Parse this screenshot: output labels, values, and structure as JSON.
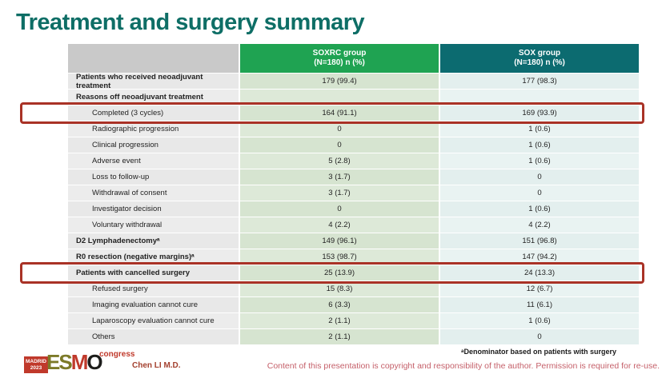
{
  "slide": {
    "title": "Treatment and surgery summary"
  },
  "table": {
    "header": {
      "col1": "",
      "col2_title": "SOXRC group",
      "col2_subtitle": "(N=180)  n (%)",
      "col3_title": "SOX group",
      "col3_subtitle": "(N=180)  n (%)"
    },
    "rows": [
      {
        "label": "Patients who received neoadjuvant treatment",
        "soxrc": "179 (99.4)",
        "sox": "177 (98.3)",
        "bold": true,
        "indent": false,
        "highlight": false
      },
      {
        "label": "Reasons off neoadjuvant treatment",
        "soxrc": "",
        "sox": "",
        "bold": true,
        "indent": false,
        "highlight": false
      },
      {
        "label": "Completed (3 cycles)",
        "soxrc": "164 (91.1)",
        "sox": "169 (93.9)",
        "bold": false,
        "indent": true,
        "highlight": true
      },
      {
        "label": "Radiographic progression",
        "soxrc": "0",
        "sox": "1 (0.6)",
        "bold": false,
        "indent": true,
        "highlight": false
      },
      {
        "label": "Clinical progression",
        "soxrc": "0",
        "sox": "1 (0.6)",
        "bold": false,
        "indent": true,
        "highlight": false
      },
      {
        "label": "Adverse event",
        "soxrc": "5 (2.8)",
        "sox": "1 (0.6)",
        "bold": false,
        "indent": true,
        "highlight": false
      },
      {
        "label": "Loss to follow-up",
        "soxrc": "3 (1.7)",
        "sox": "0",
        "bold": false,
        "indent": true,
        "highlight": false
      },
      {
        "label": "Withdrawal of consent",
        "soxrc": "3 (1.7)",
        "sox": "0",
        "bold": false,
        "indent": true,
        "highlight": false
      },
      {
        "label": "Investigator decision",
        "soxrc": "0",
        "sox": "1 (0.6)",
        "bold": false,
        "indent": true,
        "highlight": false
      },
      {
        "label": "Voluntary withdrawal",
        "soxrc": "4 (2.2)",
        "sox": "4 (2.2)",
        "bold": false,
        "indent": true,
        "highlight": false
      },
      {
        "label": "D2 Lymphadenectomyᵃ",
        "soxrc": "149 (96.1)",
        "sox": "151 (96.8)",
        "bold": true,
        "indent": false,
        "highlight": false
      },
      {
        "label": "R0 resection (negative margins)ᵃ",
        "soxrc": "153 (98.7)",
        "sox": "147 (94.2)",
        "bold": true,
        "indent": false,
        "highlight": false
      },
      {
        "label": "Patients with cancelled surgery",
        "soxrc": "25 (13.9)",
        "sox": "24 (13.3)",
        "bold": true,
        "indent": false,
        "highlight": true
      },
      {
        "label": "Refused surgery",
        "soxrc": "15 (8.3)",
        "sox": "12 (6.7)",
        "bold": false,
        "indent": true,
        "highlight": false
      },
      {
        "label": "Imaging evaluation cannot cure",
        "soxrc": "6 (3.3)",
        "sox": "11 (6.1)",
        "bold": false,
        "indent": true,
        "highlight": false
      },
      {
        "label": "Laparoscopy evaluation cannot cure",
        "soxrc": "2 (1.1)",
        "sox": "1 (0.6)",
        "bold": false,
        "indent": true,
        "highlight": false
      },
      {
        "label": "Others",
        "soxrc": "2 (1.1)",
        "sox": "0",
        "bold": false,
        "indent": true,
        "highlight": false
      }
    ]
  },
  "footer": {
    "footnote": "ᵃDenominator based on patients with surgery",
    "presenter": "Chen LI M.D.",
    "copyright": "Content of this presentation is copyright and responsibility of the author. Permission is required for re-use.",
    "logo": {
      "city": "MADRID",
      "year": "2023",
      "es": "ES",
      "m": "M",
      "o": "O",
      "congress": "congress"
    }
  },
  "colors": {
    "title_teal": "#0e6e66",
    "header_green": "#1fa352",
    "header_dark_teal": "#0c6b70",
    "label_cell_gray": "#e8e8e8",
    "soxrc_cell_green": "#d6e4d0",
    "sox_cell_cyan": "#e3efee",
    "highlight_red": "#a93226",
    "logo_red": "#c0392b",
    "logo_olive": "#7c7a28",
    "copyright_pink": "#c5606a"
  }
}
